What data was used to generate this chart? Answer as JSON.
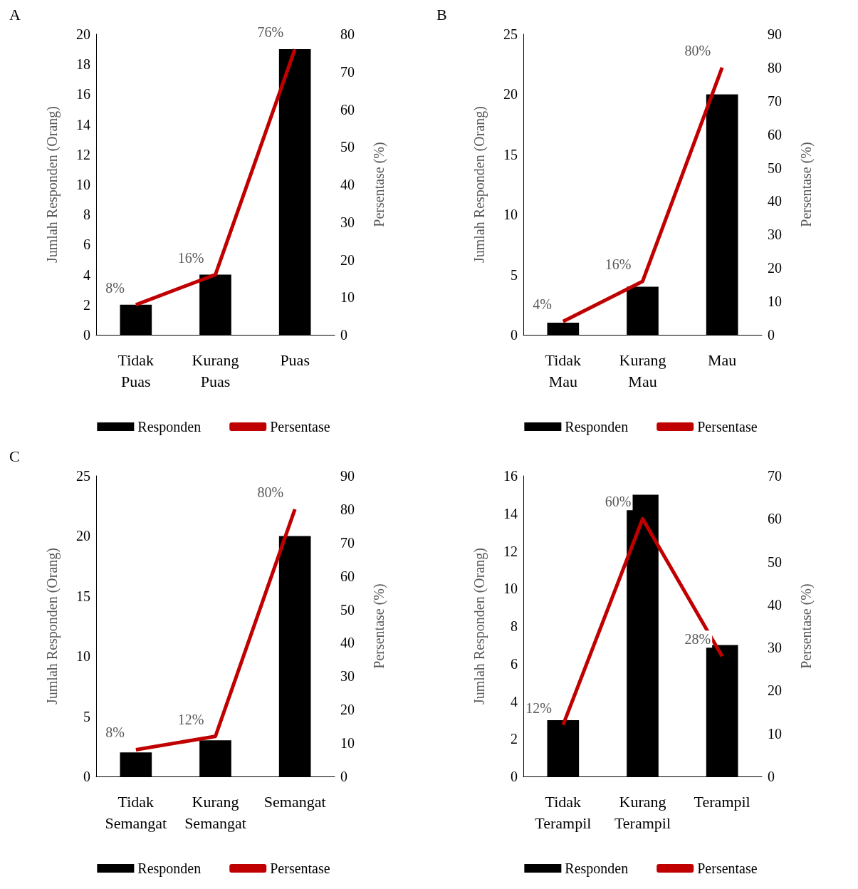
{
  "chart_data": [
    {
      "type": "bar",
      "title": "A",
      "categories": [
        "Tidak Puas",
        "Kurang Puas",
        "Puas"
      ],
      "ylabel": "Jumlah Responden (Orang)",
      "y2label": "Persentase (%)",
      "ylim": [
        0,
        20
      ],
      "yticks": [
        0,
        2,
        4,
        6,
        8,
        10,
        12,
        14,
        16,
        18,
        20
      ],
      "y2lim": [
        0,
        80
      ],
      "y2ticks": [
        0,
        10,
        20,
        30,
        40,
        50,
        60,
        70,
        80
      ],
      "grid": false,
      "legend": "bottom",
      "series": [
        {
          "name": "Responden",
          "color": "#000000",
          "values": [
            2,
            4,
            19
          ]
        },
        {
          "name": "Persentase",
          "type": "line",
          "axis": "y2",
          "color": "#c00000",
          "values": [
            8,
            16,
            76
          ],
          "value_labels": [
            "8%",
            "16%",
            "76%"
          ]
        }
      ]
    },
    {
      "type": "bar",
      "title": "B",
      "categories": [
        "Tidak Mau",
        "Kurang Mau",
        "Mau"
      ],
      "ylabel": "Jumlah Responden (Orang)",
      "y2label": "Persentase (%)",
      "ylim": [
        0,
        25
      ],
      "yticks": [
        0,
        5,
        10,
        15,
        20,
        25
      ],
      "y2lim": [
        0,
        90
      ],
      "y2ticks": [
        0,
        10,
        20,
        30,
        40,
        50,
        60,
        70,
        80,
        90
      ],
      "grid": false,
      "legend": "bottom",
      "series": [
        {
          "name": "Responden",
          "color": "#000000",
          "values": [
            1,
            4,
            20
          ]
        },
        {
          "name": "Persentase",
          "type": "line",
          "axis": "y2",
          "color": "#c00000",
          "values": [
            4,
            16,
            80
          ],
          "value_labels": [
            "4%",
            "16%",
            "80%"
          ]
        }
      ]
    },
    {
      "type": "bar",
      "title": "C",
      "categories": [
        "Tidak Semangat",
        "Kurang Semangat",
        "Semangat"
      ],
      "ylabel": "Jumlah Responden (Orang)",
      "y2label": "Persentase (%)",
      "ylim": [
        0,
        25
      ],
      "yticks": [
        0,
        5,
        10,
        15,
        20,
        25
      ],
      "y2lim": [
        0,
        90
      ],
      "y2ticks": [
        0,
        10,
        20,
        30,
        40,
        50,
        60,
        70,
        80,
        90
      ],
      "grid": false,
      "legend": "bottom",
      "series": [
        {
          "name": "Responden",
          "color": "#000000",
          "values": [
            2,
            3,
            20
          ]
        },
        {
          "name": "Persentase",
          "type": "line",
          "axis": "y2",
          "color": "#c00000",
          "values": [
            8,
            12,
            80
          ],
          "value_labels": [
            "8%",
            "12%",
            "80%"
          ]
        }
      ]
    },
    {
      "type": "bar",
      "categories": [
        "Tidak Terampil",
        "Kurang Terampil",
        "Terampil"
      ],
      "ylabel": "Jumlah Responden (Orang)",
      "y2label": "Persentase (%)",
      "ylim": [
        0,
        16
      ],
      "yticks": [
        0,
        2,
        4,
        6,
        8,
        10,
        12,
        14,
        16
      ],
      "y2lim": [
        0,
        70
      ],
      "y2ticks": [
        0,
        10,
        20,
        30,
        40,
        50,
        60,
        70
      ],
      "grid": false,
      "legend": "bottom",
      "series": [
        {
          "name": "Responden",
          "color": "#000000",
          "values": [
            3,
            15,
            7
          ]
        },
        {
          "name": "Persentase",
          "type": "line",
          "axis": "y2",
          "color": "#c00000",
          "values": [
            12,
            60,
            28
          ],
          "value_labels": [
            "12%",
            "60%",
            "28%"
          ]
        }
      ]
    }
  ]
}
